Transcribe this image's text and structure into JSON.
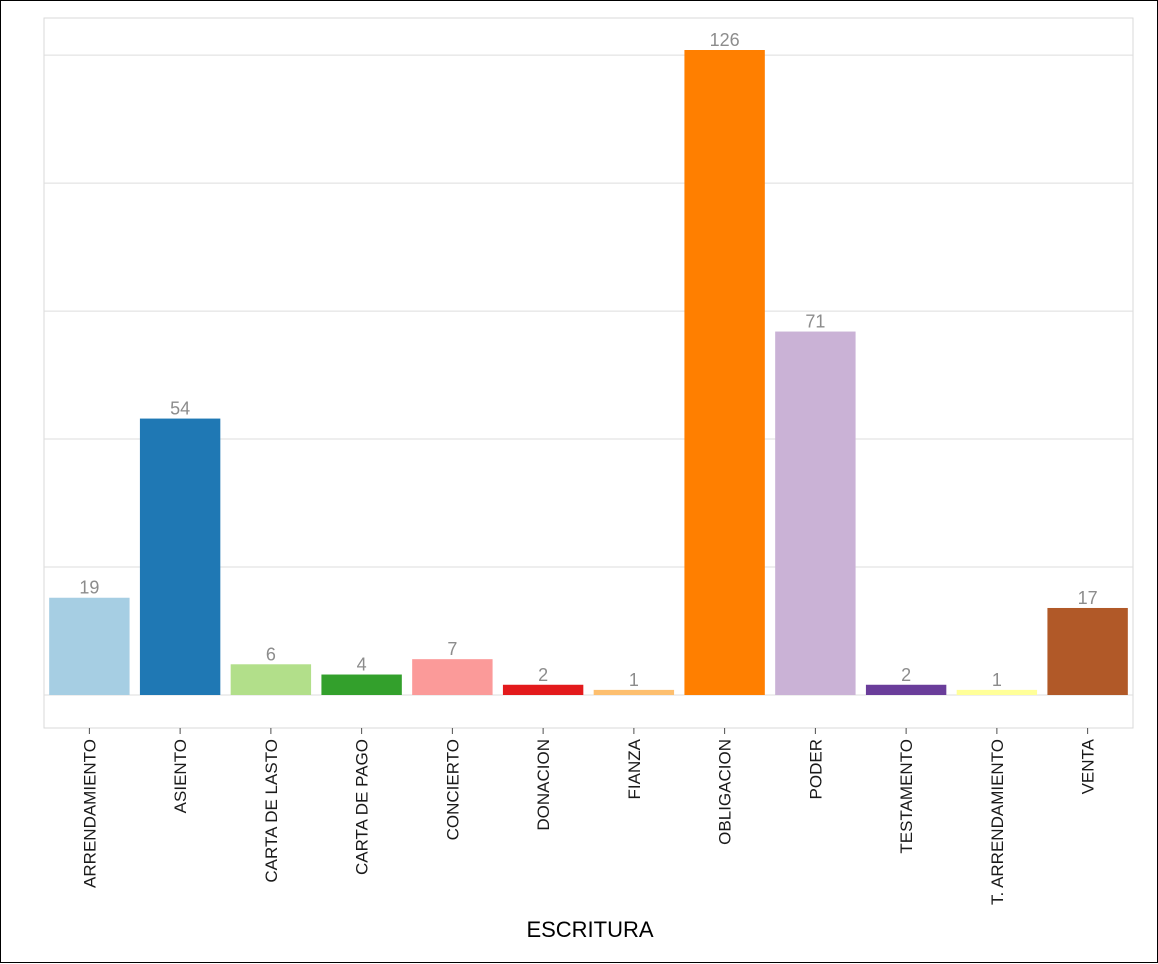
{
  "chart_data": {
    "type": "bar",
    "categories": [
      "ARRENDAMIENTO",
      "ASIENTO",
      "CARTA DE LASTO",
      "CARTA DE PAGO",
      "CONCIERTO",
      "DONACION",
      "FIANZA",
      "OBLIGACION",
      "PODER",
      "TESTAMENTO",
      "T. ARRENDAMIENTO",
      "VENTA"
    ],
    "values": [
      19,
      54,
      6,
      4,
      7,
      2,
      1,
      126,
      71,
      2,
      1,
      17
    ],
    "colors": [
      "#a6cee3",
      "#1f78b4",
      "#b2df8a",
      "#33a02c",
      "#fb9a99",
      "#e31a1c",
      "#fdbf6f",
      "#ff7f00",
      "#cab2d6",
      "#6a3d9a",
      "#ffff99",
      "#b15928"
    ],
    "xlabel": "ESCRITURA",
    "ylabel": "",
    "ylim": [
      0,
      132.3
    ],
    "grid": true,
    "legend": "none"
  }
}
